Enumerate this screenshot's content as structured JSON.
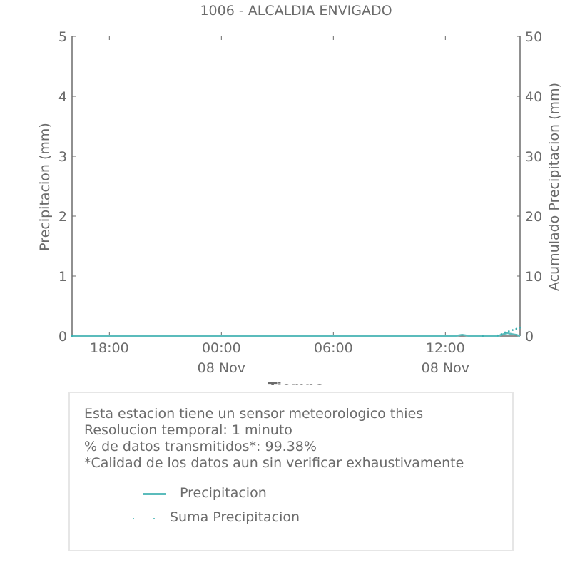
{
  "chart_data": {
    "type": "line",
    "title": "1006 - ALCALDIA ENVIGADO",
    "xlabel": "Tiempo",
    "ylabel": "Precipitacion (mm)",
    "ylabel_right": "Acumulado Precipitacion (mm)",
    "x_range_hours": [
      -8.0,
      16.0
    ],
    "x_ticks": [
      {
        "hour": -6,
        "label": "18:00",
        "sublabel": ""
      },
      {
        "hour": 0,
        "label": "00:00",
        "sublabel": "08 Nov"
      },
      {
        "hour": 6,
        "label": "06:00",
        "sublabel": ""
      },
      {
        "hour": 12,
        "label": "12:00",
        "sublabel": "08 Nov"
      }
    ],
    "ylim": [
      0,
      5
    ],
    "y_ticks": [
      0,
      1,
      2,
      3,
      4,
      5
    ],
    "ylim_right": [
      0,
      50
    ],
    "y_ticks_right": [
      0,
      10,
      20,
      30,
      40,
      50
    ],
    "grid": false,
    "series": [
      {
        "name": "Precipitacion",
        "style": "line",
        "color": "#5bbcbc",
        "x": [
          -8.0,
          12.5,
          12.9,
          13.3,
          14.8,
          15.1,
          15.3,
          15.6,
          15.8,
          16.0
        ],
        "y": [
          0.0,
          0.0,
          0.02,
          0.0,
          0.0,
          0.03,
          0.05,
          0.03,
          0.02,
          0.0
        ]
      },
      {
        "name": "Suma Precipitacion",
        "style": "dots",
        "color": "#3ab0b0",
        "x": [
          -8.0,
          14.0,
          14.8,
          15.0,
          15.2,
          15.4,
          15.6,
          15.8,
          16.0
        ],
        "y": [
          0.0,
          0.0,
          0.1,
          0.3,
          0.6,
          0.8,
          1.0,
          1.2,
          1.4
        ]
      }
    ]
  },
  "info": {
    "line1": "Esta estacion tiene un sensor meteorologico thies",
    "line2": "Resolucion temporal: 1 minuto",
    "line3": "% de datos transmitidos*: 99.38%",
    "line4": "*Calidad de los datos aun sin verificar exhaustivamente"
  },
  "legend": {
    "item1": "Precipitacion",
    "item2": "Suma Precipitacion"
  }
}
